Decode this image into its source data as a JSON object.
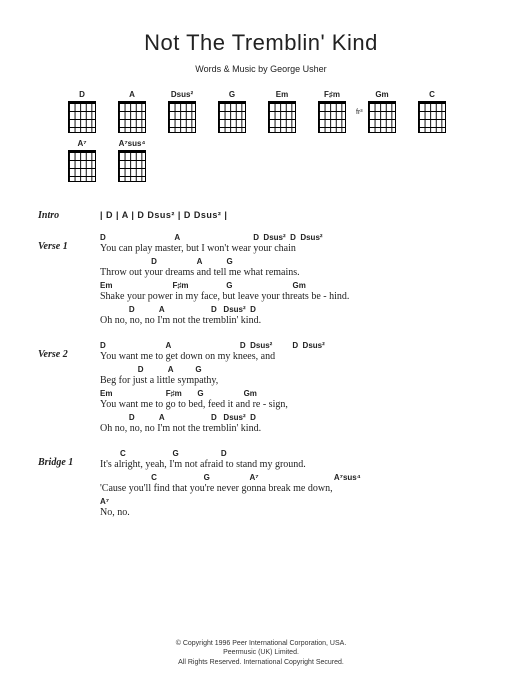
{
  "title": "Not The Tremblin' Kind",
  "subtitle": "Words & Music by George Usher",
  "chord_diagrams": [
    {
      "name": "D",
      "fret": ""
    },
    {
      "name": "A",
      "fret": ""
    },
    {
      "name": "Dsus²",
      "fret": ""
    },
    {
      "name": "G",
      "fret": ""
    },
    {
      "name": "Em",
      "fret": ""
    },
    {
      "name": "F♯m",
      "fret": ""
    },
    {
      "name": "Gm",
      "fret": "fr³"
    },
    {
      "name": "C",
      "fret": ""
    },
    {
      "name": "A⁷",
      "fret": ""
    },
    {
      "name": "A⁷sus⁴",
      "fret": ""
    }
  ],
  "sections": [
    {
      "label": "Intro",
      "type": "intro",
      "chords_line": "| D        | A        | D  Dsus²  | D  Dsus²  |"
    },
    {
      "label": "Verse 1",
      "type": "verse",
      "lines": [
        {
          "chords": "D                               A                                 D  Dsus²  D  Dsus²",
          "lyric": "You can play master, but I won't wear your chain"
        },
        {
          "chords": "                       D                  A           G",
          "lyric": "Throw out your dreams and tell me what remains."
        },
        {
          "chords": "Em                           F♯m                 G                           Gm",
          "lyric": "Shake your power in my face, but leave your threats be - hind."
        },
        {
          "chords": "             D           A                     D   Dsus²  D",
          "lyric": "Oh no, no, no I'm not the tremblin' kind."
        }
      ]
    },
    {
      "label": "Verse 2",
      "type": "verse",
      "lines": [
        {
          "chords": "D                           A                               D  Dsus²         D  Dsus²",
          "lyric": "You want me to get down on my knees,                        and"
        },
        {
          "chords": "                 D           A          G",
          "lyric": "Beg for just a little sympathy,"
        },
        {
          "chords": "Em                        F♯m       G                  Gm",
          "lyric": "You want me to go to bed, feed it and re - sign,"
        },
        {
          "chords": "             D           A                     D   Dsus²  D",
          "lyric": "Oh no, no, no I'm not the tremblin' kind."
        }
      ]
    },
    {
      "label": "Bridge 1",
      "type": "verse",
      "lines": [
        {
          "chords": "         C                     G                   D",
          "lyric": "It's alright, yeah, I'm not afraid to stand my ground."
        },
        {
          "chords": "                       C                     G                  A⁷                                  A⁷sus⁴",
          "lyric": "'Cause you'll find that you're never gonna break me down,"
        },
        {
          "chords": "A⁷",
          "lyric": "No, no."
        }
      ]
    }
  ],
  "copyright": {
    "line1": "© Copyright 1996 Peer International Corporation, USA.",
    "line2": "Peermusic (UK) Limited.",
    "line3": "All Rights Reserved. International Copyright Secured."
  }
}
